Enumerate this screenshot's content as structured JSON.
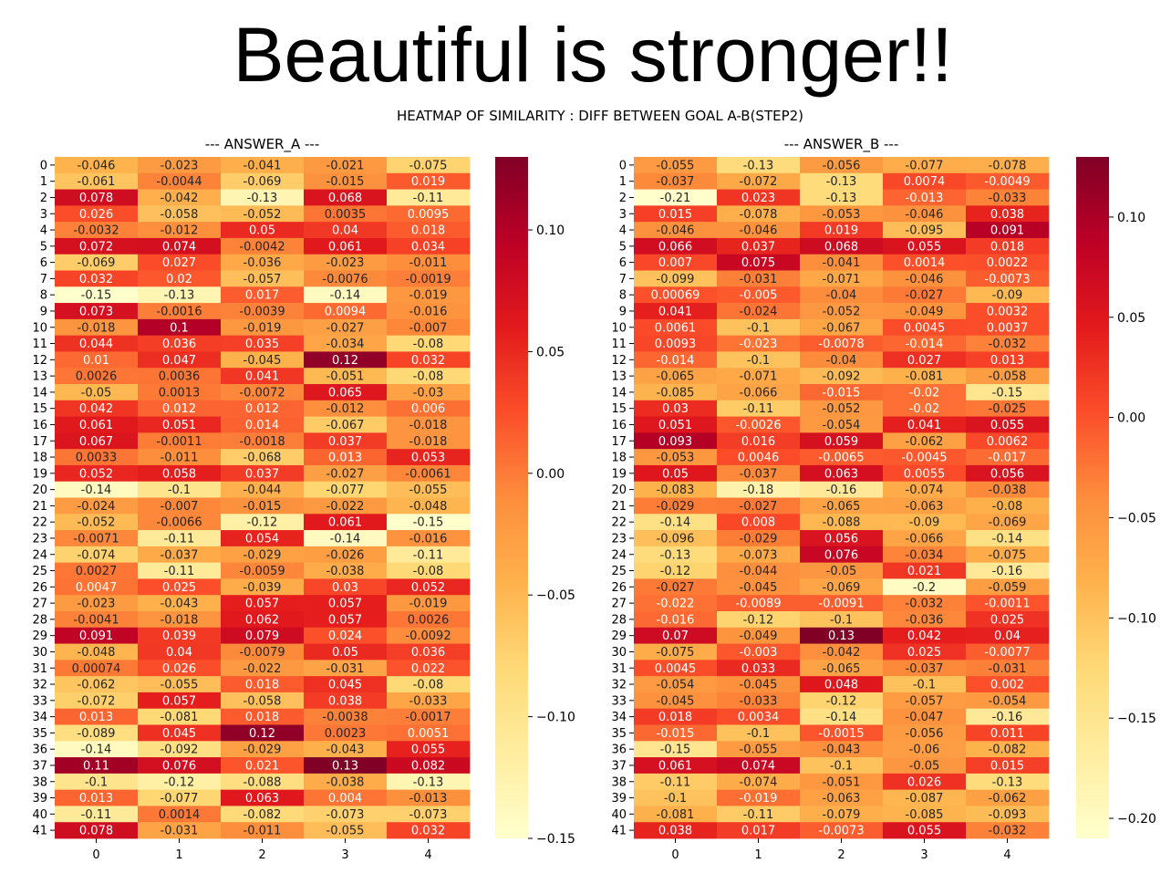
{
  "page": {
    "title": "Beautiful is stronger!!"
  },
  "chart_data": {
    "type": "heatmap",
    "suptitle": "HEATMAP OF SIMILARITY : DIFF BETWEEN GOAL A-B(STEP2)",
    "colormap": "YlOrRd",
    "annotated": true,
    "grid": false,
    "panels": [
      {
        "name": "answer-a",
        "title": "--- ANSWER_A ---",
        "x_ticks": [
          "0",
          "1",
          "2",
          "3",
          "4"
        ],
        "y_ticks": [
          "0",
          "1",
          "2",
          "3",
          "4",
          "5",
          "6",
          "7",
          "8",
          "9",
          "10",
          "11",
          "12",
          "13",
          "14",
          "15",
          "16",
          "17",
          "18",
          "19",
          "20",
          "21",
          "22",
          "23",
          "24",
          "25",
          "26",
          "27",
          "28",
          "29",
          "30",
          "31",
          "32",
          "33",
          "34",
          "35",
          "36",
          "37",
          "38",
          "39",
          "40",
          "41"
        ],
        "vmin": -0.15,
        "vmax": 0.13,
        "colorbar_ticks": [
          0.1,
          0.05,
          0.0,
          -0.05,
          -0.1,
          -0.15
        ],
        "colorbar_labels": [
          "0.10",
          "0.05",
          "0.00",
          "−0.05",
          "−0.10",
          "−0.15"
        ],
        "rows": [
          [
            "-0.046",
            "-0.023",
            "-0.041",
            "-0.021",
            "-0.075"
          ],
          [
            "-0.061",
            "-0.0044",
            "-0.069",
            "-0.015",
            "0.019"
          ],
          [
            "0.078",
            "-0.042",
            "-0.13",
            "0.068",
            "-0.11"
          ],
          [
            "0.026",
            "-0.058",
            "-0.052",
            "0.0035",
            "0.0095"
          ],
          [
            "-0.0032",
            "-0.012",
            "0.05",
            "0.04",
            "0.018"
          ],
          [
            "0.072",
            "0.074",
            "-0.0042",
            "0.061",
            "0.034"
          ],
          [
            "-0.069",
            "0.027",
            "-0.036",
            "-0.023",
            "-0.011"
          ],
          [
            "0.032",
            "0.02",
            "-0.057",
            "-0.0076",
            "-0.0019"
          ],
          [
            "-0.15",
            "-0.13",
            "0.017",
            "-0.14",
            "-0.019"
          ],
          [
            "0.073",
            "-0.0016",
            "-0.0039",
            "0.0094",
            "-0.016"
          ],
          [
            "-0.018",
            "0.1",
            "-0.019",
            "-0.027",
            "-0.007"
          ],
          [
            "0.044",
            "0.036",
            "0.035",
            "-0.034",
            "-0.08"
          ],
          [
            "0.01",
            "0.047",
            "-0.045",
            "0.12",
            "0.032"
          ],
          [
            "0.0026",
            "0.0036",
            "0.041",
            "-0.051",
            "-0.08"
          ],
          [
            "-0.05",
            "0.0013",
            "-0.0072",
            "0.065",
            "-0.03"
          ],
          [
            "0.042",
            "0.012",
            "0.012",
            "-0.012",
            "0.006"
          ],
          [
            "0.061",
            "0.051",
            "0.014",
            "-0.067",
            "-0.018"
          ],
          [
            "0.067",
            "-0.0011",
            "-0.0018",
            "0.037",
            "-0.018"
          ],
          [
            "0.0033",
            "-0.011",
            "-0.068",
            "0.013",
            "0.053"
          ],
          [
            "0.052",
            "0.058",
            "0.037",
            "-0.027",
            "-0.0061"
          ],
          [
            "-0.14",
            "-0.1",
            "-0.044",
            "-0.077",
            "-0.055"
          ],
          [
            "-0.024",
            "-0.007",
            "-0.015",
            "-0.022",
            "-0.048"
          ],
          [
            "-0.052",
            "-0.0066",
            "-0.12",
            "0.061",
            "-0.15"
          ],
          [
            "-0.0071",
            "-0.11",
            "0.054",
            "-0.14",
            "-0.016"
          ],
          [
            "-0.074",
            "-0.037",
            "-0.029",
            "-0.026",
            "-0.11"
          ],
          [
            "0.0027",
            "-0.11",
            "-0.0059",
            "-0.038",
            "-0.08"
          ],
          [
            "0.0047",
            "0.025",
            "-0.039",
            "0.03",
            "0.052"
          ],
          [
            "-0.023",
            "-0.043",
            "0.057",
            "0.057",
            "-0.019"
          ],
          [
            "-0.0041",
            "-0.018",
            "0.062",
            "0.057",
            "0.0026"
          ],
          [
            "0.091",
            "0.039",
            "0.079",
            "0.024",
            "-0.0092"
          ],
          [
            "-0.048",
            "0.04",
            "-0.0079",
            "0.05",
            "0.036"
          ],
          [
            "0.00074",
            "0.026",
            "-0.022",
            "-0.031",
            "0.022"
          ],
          [
            "-0.062",
            "-0.055",
            "0.018",
            "0.045",
            "-0.08"
          ],
          [
            "-0.072",
            "0.057",
            "-0.058",
            "0.038",
            "-0.033"
          ],
          [
            "0.013",
            "-0.081",
            "0.018",
            "-0.0038",
            "-0.0017"
          ],
          [
            "-0.089",
            "0.045",
            "0.12",
            "0.0023",
            "0.0051"
          ],
          [
            "-0.14",
            "-0.092",
            "-0.029",
            "-0.043",
            "0.055"
          ],
          [
            "0.11",
            "0.076",
            "0.021",
            "0.13",
            "0.082"
          ],
          [
            "-0.1",
            "-0.12",
            "-0.088",
            "-0.038",
            "-0.13"
          ],
          [
            "0.013",
            "-0.077",
            "0.063",
            "0.004",
            "-0.013"
          ],
          [
            "-0.11",
            "0.0014",
            "-0.082",
            "-0.073",
            "-0.073"
          ],
          [
            "0.078",
            "-0.031",
            "-0.011",
            "-0.055",
            "0.032"
          ]
        ]
      },
      {
        "name": "answer-b",
        "title": "--- ANSWER_B ---",
        "x_ticks": [
          "0",
          "1",
          "2",
          "3",
          "4"
        ],
        "y_ticks": [
          "0",
          "1",
          "2",
          "3",
          "4",
          "5",
          "6",
          "7",
          "8",
          "9",
          "10",
          "11",
          "12",
          "13",
          "14",
          "15",
          "16",
          "17",
          "18",
          "19",
          "20",
          "21",
          "22",
          "23",
          "24",
          "25",
          "26",
          "27",
          "28",
          "29",
          "30",
          "31",
          "32",
          "33",
          "34",
          "35",
          "36",
          "37",
          "38",
          "39",
          "40",
          "41"
        ],
        "vmin": -0.21,
        "vmax": 0.13,
        "colorbar_ticks": [
          0.1,
          0.05,
          0.0,
          -0.05,
          -0.1,
          -0.15,
          -0.2
        ],
        "colorbar_labels": [
          "0.10",
          "0.05",
          "0.00",
          "−0.05",
          "−0.10",
          "−0.15",
          "−0.20"
        ],
        "rows": [
          [
            "-0.055",
            "-0.13",
            "-0.056",
            "-0.077",
            "-0.078"
          ],
          [
            "-0.037",
            "-0.072",
            "-0.13",
            "0.0074",
            "-0.0049"
          ],
          [
            "-0.21",
            "0.023",
            "-0.13",
            "-0.013",
            "-0.033"
          ],
          [
            "0.015",
            "-0.078",
            "-0.053",
            "-0.046",
            "0.038"
          ],
          [
            "-0.046",
            "-0.046",
            "0.019",
            "-0.095",
            "0.091"
          ],
          [
            "0.066",
            "0.037",
            "0.068",
            "0.055",
            "0.018"
          ],
          [
            "0.007",
            "0.075",
            "-0.041",
            "0.0014",
            "0.0022"
          ],
          [
            "-0.099",
            "-0.031",
            "-0.071",
            "-0.046",
            "-0.0073"
          ],
          [
            "0.00069",
            "-0.005",
            "-0.04",
            "-0.027",
            "-0.09"
          ],
          [
            "0.041",
            "-0.024",
            "-0.052",
            "-0.049",
            "0.0032"
          ],
          [
            "0.0061",
            "-0.1",
            "-0.067",
            "0.0045",
            "0.0037"
          ],
          [
            "0.0093",
            "-0.023",
            "-0.0078",
            "-0.014",
            "-0.032"
          ],
          [
            "-0.014",
            "-0.1",
            "-0.04",
            "0.027",
            "0.013"
          ],
          [
            "-0.065",
            "-0.071",
            "-0.092",
            "-0.081",
            "-0.058"
          ],
          [
            "-0.085",
            "-0.066",
            "-0.015",
            "-0.02",
            "-0.15"
          ],
          [
            "0.03",
            "-0.11",
            "-0.052",
            "-0.02",
            "-0.025"
          ],
          [
            "0.051",
            "-0.0026",
            "-0.054",
            "0.041",
            "0.055"
          ],
          [
            "0.093",
            "0.016",
            "0.059",
            "-0.062",
            "0.0062"
          ],
          [
            "-0.053",
            "0.0046",
            "-0.0065",
            "-0.0045",
            "-0.017"
          ],
          [
            "0.05",
            "-0.037",
            "0.063",
            "0.0055",
            "0.056"
          ],
          [
            "-0.083",
            "-0.18",
            "-0.16",
            "-0.074",
            "-0.038"
          ],
          [
            "-0.029",
            "-0.027",
            "-0.065",
            "-0.063",
            "-0.08"
          ],
          [
            "-0.14",
            "0.008",
            "-0.088",
            "-0.09",
            "-0.069"
          ],
          [
            "-0.096",
            "-0.029",
            "0.056",
            "-0.066",
            "-0.14"
          ],
          [
            "-0.13",
            "-0.073",
            "0.076",
            "-0.034",
            "-0.075"
          ],
          [
            "-0.12",
            "-0.044",
            "-0.05",
            "0.021",
            "-0.16"
          ],
          [
            "-0.027",
            "-0.045",
            "-0.069",
            "-0.2",
            "-0.059"
          ],
          [
            "-0.022",
            "-0.0089",
            "-0.0091",
            "-0.032",
            "-0.0011"
          ],
          [
            "-0.016",
            "-0.12",
            "-0.1",
            "-0.036",
            "0.025"
          ],
          [
            "0.07",
            "-0.049",
            "0.13",
            "0.042",
            "0.04"
          ],
          [
            "-0.075",
            "-0.003",
            "-0.042",
            "0.025",
            "-0.0077"
          ],
          [
            "0.0045",
            "0.033",
            "-0.065",
            "-0.037",
            "-0.031"
          ],
          [
            "-0.054",
            "-0.045",
            "0.048",
            "-0.1",
            "0.002"
          ],
          [
            "-0.045",
            "-0.033",
            "-0.12",
            "-0.057",
            "-0.054"
          ],
          [
            "0.018",
            "0.0034",
            "-0.14",
            "-0.047",
            "-0.16"
          ],
          [
            "-0.015",
            "-0.1",
            "-0.0015",
            "-0.056",
            "0.011"
          ],
          [
            "-0.15",
            "-0.055",
            "-0.043",
            "-0.06",
            "-0.082"
          ],
          [
            "0.061",
            "0.074",
            "-0.1",
            "-0.05",
            "0.015"
          ],
          [
            "-0.11",
            "-0.074",
            "-0.051",
            "0.026",
            "-0.13"
          ],
          [
            "-0.1",
            "-0.019",
            "-0.063",
            "-0.087",
            "-0.062"
          ],
          [
            "-0.081",
            "-0.11",
            "-0.079",
            "-0.085",
            "-0.093"
          ],
          [
            "0.038",
            "0.017",
            "-0.0073",
            "0.055",
            "-0.032"
          ]
        ]
      }
    ]
  }
}
